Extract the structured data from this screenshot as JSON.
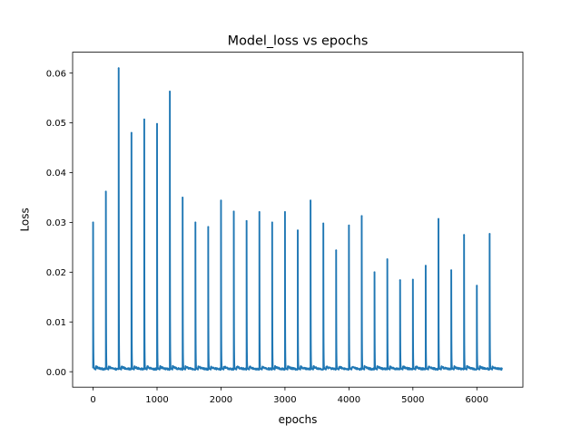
{
  "chart_data": {
    "type": "line",
    "title": "Model_loss vs epochs",
    "xlabel": "epochs",
    "ylabel": "Loss",
    "xlim": [
      -320,
      6720
    ],
    "ylim": [
      -0.0031,
      0.0642
    ],
    "xticks": [
      0,
      1000,
      2000,
      3000,
      4000,
      5000,
      6000
    ],
    "xtick_labels": [
      "0",
      "1000",
      "2000",
      "3000",
      "4000",
      "5000",
      "6000"
    ],
    "yticks": [
      0.0,
      0.01,
      0.02,
      0.03,
      0.04,
      0.05,
      0.06
    ],
    "ytick_labels": [
      "0.00",
      "0.01",
      "0.02",
      "0.03",
      "0.04",
      "0.05",
      "0.06"
    ],
    "grid": false,
    "legend": "none",
    "series": [
      {
        "color": "#1f77b4",
        "x_range": [
          0,
          6400
        ],
        "cycle_length": 200,
        "baseline": 0.0003,
        "spike_epochs": [
          0,
          200,
          400,
          600,
          800,
          1000,
          1200,
          1400,
          1600,
          1800,
          2000,
          2200,
          2400,
          2600,
          2800,
          3000,
          3200,
          3400,
          3600,
          3800,
          4000,
          4200,
          4400,
          4600,
          4800,
          5000,
          5200,
          5400,
          5600,
          5800,
          6000,
          6200
        ],
        "spike_values": [
          0.03,
          0.0362,
          0.061,
          0.048,
          0.0507,
          0.0498,
          0.0563,
          0.035,
          0.03,
          0.0291,
          0.0344,
          0.0322,
          0.0303,
          0.0321,
          0.03,
          0.0321,
          0.0284,
          0.0344,
          0.0298,
          0.0244,
          0.0294,
          0.0313,
          0.02,
          0.0226,
          0.0184,
          0.0185,
          0.0213,
          0.0307,
          0.0204,
          0.0275,
          0.0173,
          0.0277
        ]
      }
    ]
  }
}
